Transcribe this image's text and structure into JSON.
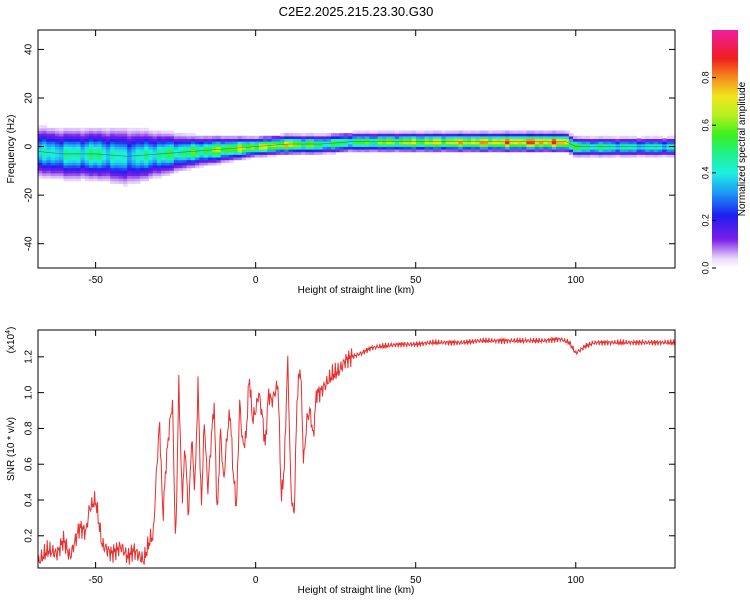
{
  "figure_title": "C2E2.2025.215.23.30.G30",
  "colorbar": {
    "label": "Normalized spectral amplitude",
    "ticks": [
      "0.0",
      "0.2",
      "0.4",
      "0.6",
      "0.8"
    ],
    "tick_values": [
      0.0,
      0.2,
      0.4,
      0.6,
      0.8
    ],
    "range": [
      0,
      1
    ]
  },
  "chart_data": [
    {
      "type": "heatmap",
      "title": "",
      "xlabel": "Height of straight line (km)",
      "ylabel": "Frequency (Hz)",
      "xlim": [
        -68,
        131
      ],
      "ylim": [
        -50,
        48
      ],
      "xticks": [
        -50,
        0,
        50,
        100
      ],
      "xtick_labels": [
        "-50",
        "0",
        "50",
        "100"
      ],
      "yticks": [
        -40,
        -20,
        0,
        20,
        40
      ],
      "ytick_labels": [
        "-40",
        "-20",
        "0",
        "20",
        "40"
      ],
      "ridge": {
        "x": [
          -68,
          -60,
          -50,
          -40,
          -30,
          -20,
          -10,
          0,
          10,
          20,
          30,
          40,
          50,
          60,
          70,
          80,
          90,
          97,
          100,
          110,
          120,
          131
        ],
        "freq": [
          -2,
          -3,
          -3,
          -4,
          -3,
          -2,
          -1,
          0,
          1,
          1,
          2,
          2,
          2,
          2,
          2,
          2,
          2,
          2,
          0,
          0,
          0,
          0
        ],
        "spread": [
          8,
          8,
          8,
          9,
          7,
          5,
          4,
          3,
          3,
          3,
          3,
          3,
          3,
          3,
          3,
          3,
          3,
          3,
          3,
          3,
          3,
          3
        ],
        "amplitude": [
          0.45,
          0.5,
          0.55,
          0.45,
          0.55,
          0.6,
          0.7,
          0.75,
          0.8,
          0.6,
          0.6,
          0.7,
          0.75,
          0.8,
          0.85,
          0.9,
          0.95,
          0.9,
          0.6,
          0.55,
          0.5,
          0.5
        ]
      }
    },
    {
      "type": "line",
      "title": "",
      "xlabel": "Height of straight line (km)",
      "ylabel": "SNR (10 * v/v)",
      "scale_label": "(x10",
      "scale_exponent": "4",
      "scale_close": ")",
      "xlim": [
        -68,
        131
      ],
      "ylim": [
        0.02,
        1.35
      ],
      "xticks": [
        -50,
        0,
        50,
        100
      ],
      "xtick_labels": [
        "-50",
        "0",
        "50",
        "100"
      ],
      "yticks": [
        0.2,
        0.4,
        0.6,
        0.8,
        1.0,
        1.2
      ],
      "ytick_labels": [
        "0.2",
        "0.4",
        "0.6",
        "0.8",
        "1.0",
        "1.2"
      ],
      "color": "#e83030",
      "series": [
        {
          "x": [
            -68,
            -65,
            -62,
            -60,
            -58,
            -55,
            -53,
            -52,
            -50,
            -48,
            -45,
            -42,
            -40,
            -38,
            -35,
            -33,
            -32,
            -31,
            -30,
            -29,
            -28,
            -27,
            -26,
            -25,
            -24,
            -23,
            -22,
            -21,
            -20,
            -19,
            -18,
            -17,
            -16,
            -15,
            -14,
            -13,
            -12,
            -11,
            -10,
            -9,
            -8,
            -7,
            -6,
            -5,
            -4,
            -3,
            -2,
            -1,
            0,
            1,
            2,
            3,
            4,
            5,
            6,
            7,
            8,
            9,
            10,
            11,
            12,
            13,
            14,
            15,
            16,
            17,
            18,
            19,
            20,
            22,
            24,
            26,
            28,
            30,
            33,
            36,
            40,
            45,
            50,
            55,
            60,
            65,
            70,
            75,
            80,
            85,
            90,
            95,
            98,
            100,
            103,
            106,
            110,
            115,
            120,
            125,
            131
          ],
          "y": [
            0.05,
            0.12,
            0.1,
            0.18,
            0.08,
            0.25,
            0.22,
            0.35,
            0.4,
            0.15,
            0.1,
            0.14,
            0.08,
            0.12,
            0.06,
            0.18,
            0.2,
            0.55,
            0.84,
            0.3,
            0.6,
            0.8,
            0.95,
            0.12,
            1.05,
            0.4,
            0.7,
            0.3,
            0.75,
            0.45,
            1.05,
            0.35,
            0.85,
            0.45,
            0.7,
            0.95,
            0.3,
            0.8,
            0.5,
            0.75,
            0.9,
            0.55,
            0.35,
            0.95,
            0.7,
            0.75,
            1.1,
            0.85,
            0.9,
            1.0,
            0.88,
            0.7,
            1.0,
            0.95,
            1.0,
            1.05,
            0.4,
            0.6,
            1.2,
            0.45,
            0.3,
            1.0,
            1.15,
            0.6,
            0.85,
            0.9,
            0.75,
            1.0,
            1.0,
            1.05,
            1.1,
            1.12,
            1.18,
            1.2,
            1.22,
            1.25,
            1.26,
            1.27,
            1.27,
            1.28,
            1.28,
            1.28,
            1.29,
            1.29,
            1.29,
            1.29,
            1.29,
            1.3,
            1.28,
            1.22,
            1.26,
            1.28,
            1.28,
            1.28,
            1.28,
            1.28,
            1.28
          ]
        }
      ]
    }
  ]
}
